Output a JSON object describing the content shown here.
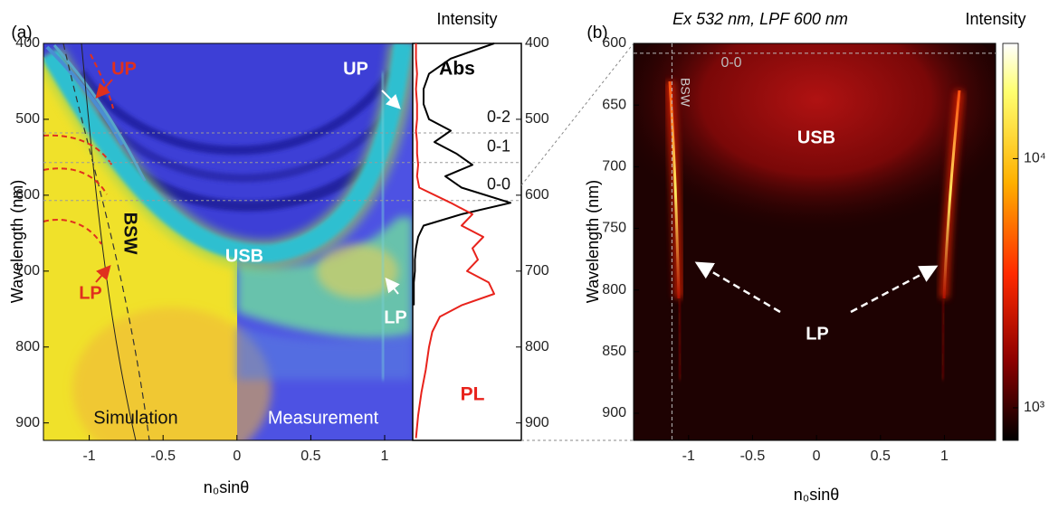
{
  "chart_data": [
    {
      "type": "heatmap",
      "label": "(a)",
      "xlim": [
        -1.31,
        1.19
      ],
      "xticks": [
        -1,
        -0.5,
        0,
        0.5,
        1
      ],
      "ylim": [
        400,
        923
      ],
      "yticks": [
        400,
        500,
        600,
        700,
        800,
        900
      ],
      "xlabel": "n₀sinθ",
      "ylabel": "Wavelength (nm)",
      "annotations": [
        "UP",
        "LP",
        "BSW",
        "USB",
        "UP",
        "LP",
        "Simulation",
        "Measurement"
      ]
    },
    {
      "type": "line",
      "title": "Intensity",
      "orientation": "horizontal",
      "xlim": [
        0,
        1
      ],
      "ylim": [
        400,
        923
      ],
      "yticks": [
        400,
        500,
        600,
        700,
        800,
        900
      ],
      "x": [
        400,
        420,
        440,
        460,
        480,
        500,
        515,
        530,
        545,
        560,
        575,
        590,
        610,
        625,
        640,
        655,
        670,
        685,
        700,
        715,
        730,
        745,
        760,
        780,
        800,
        830,
        860,
        890,
        920
      ],
      "series": [
        {
          "name": "Abs",
          "color": "#000000",
          "values": [
            0.75,
            0.35,
            0.15,
            0.1,
            0.1,
            0.15,
            0.35,
            0.2,
            0.4,
            0.55,
            0.3,
            0.45,
            0.9,
            0.45,
            0.1,
            0.05,
            0.03,
            0.02,
            0.02,
            0.01,
            0.01,
            0.01,
            null,
            null,
            null,
            null,
            null,
            null,
            null
          ]
        },
        {
          "name": "PL",
          "color": "#e8231c",
          "values": [
            0.03,
            0.03,
            0.04,
            0.03,
            0.04,
            0.04,
            0.03,
            0.04,
            0.04,
            0.05,
            0.04,
            0.06,
            0.35,
            0.55,
            0.45,
            0.65,
            0.55,
            0.6,
            0.5,
            0.7,
            0.75,
            0.45,
            0.25,
            0.18,
            0.15,
            0.12,
            0.08,
            0.05,
            0.03
          ]
        }
      ],
      "hlines": [
        518,
        557,
        607
      ],
      "hline_labels": [
        "0-2",
        "0-1",
        "0-0"
      ]
    },
    {
      "type": "heatmap",
      "label": "(b)",
      "title": "Ex 532 nm, LPF 600 nm",
      "xlim": [
        -1.43,
        1.4
      ],
      "xticks": [
        -1,
        -0.5,
        0,
        0.5,
        1
      ],
      "ylim": [
        600,
        922
      ],
      "yticks": [
        600,
        650,
        700,
        750,
        800,
        850,
        900
      ],
      "xlabel": "n₀sinθ",
      "ylabel": "Wavelength (nm)",
      "annotations": [
        "0-0",
        "BSW",
        "USB",
        "LP"
      ],
      "hlines": [
        608
      ],
      "vlines": [
        -1.13
      ],
      "colorbar": {
        "title": "Intensity",
        "scale": "log",
        "lim": [
          740,
          29000
        ],
        "ticks": [
          {
            "value": 1000,
            "label": "10³"
          },
          {
            "value": 10000,
            "label": "10⁴"
          }
        ]
      }
    }
  ]
}
